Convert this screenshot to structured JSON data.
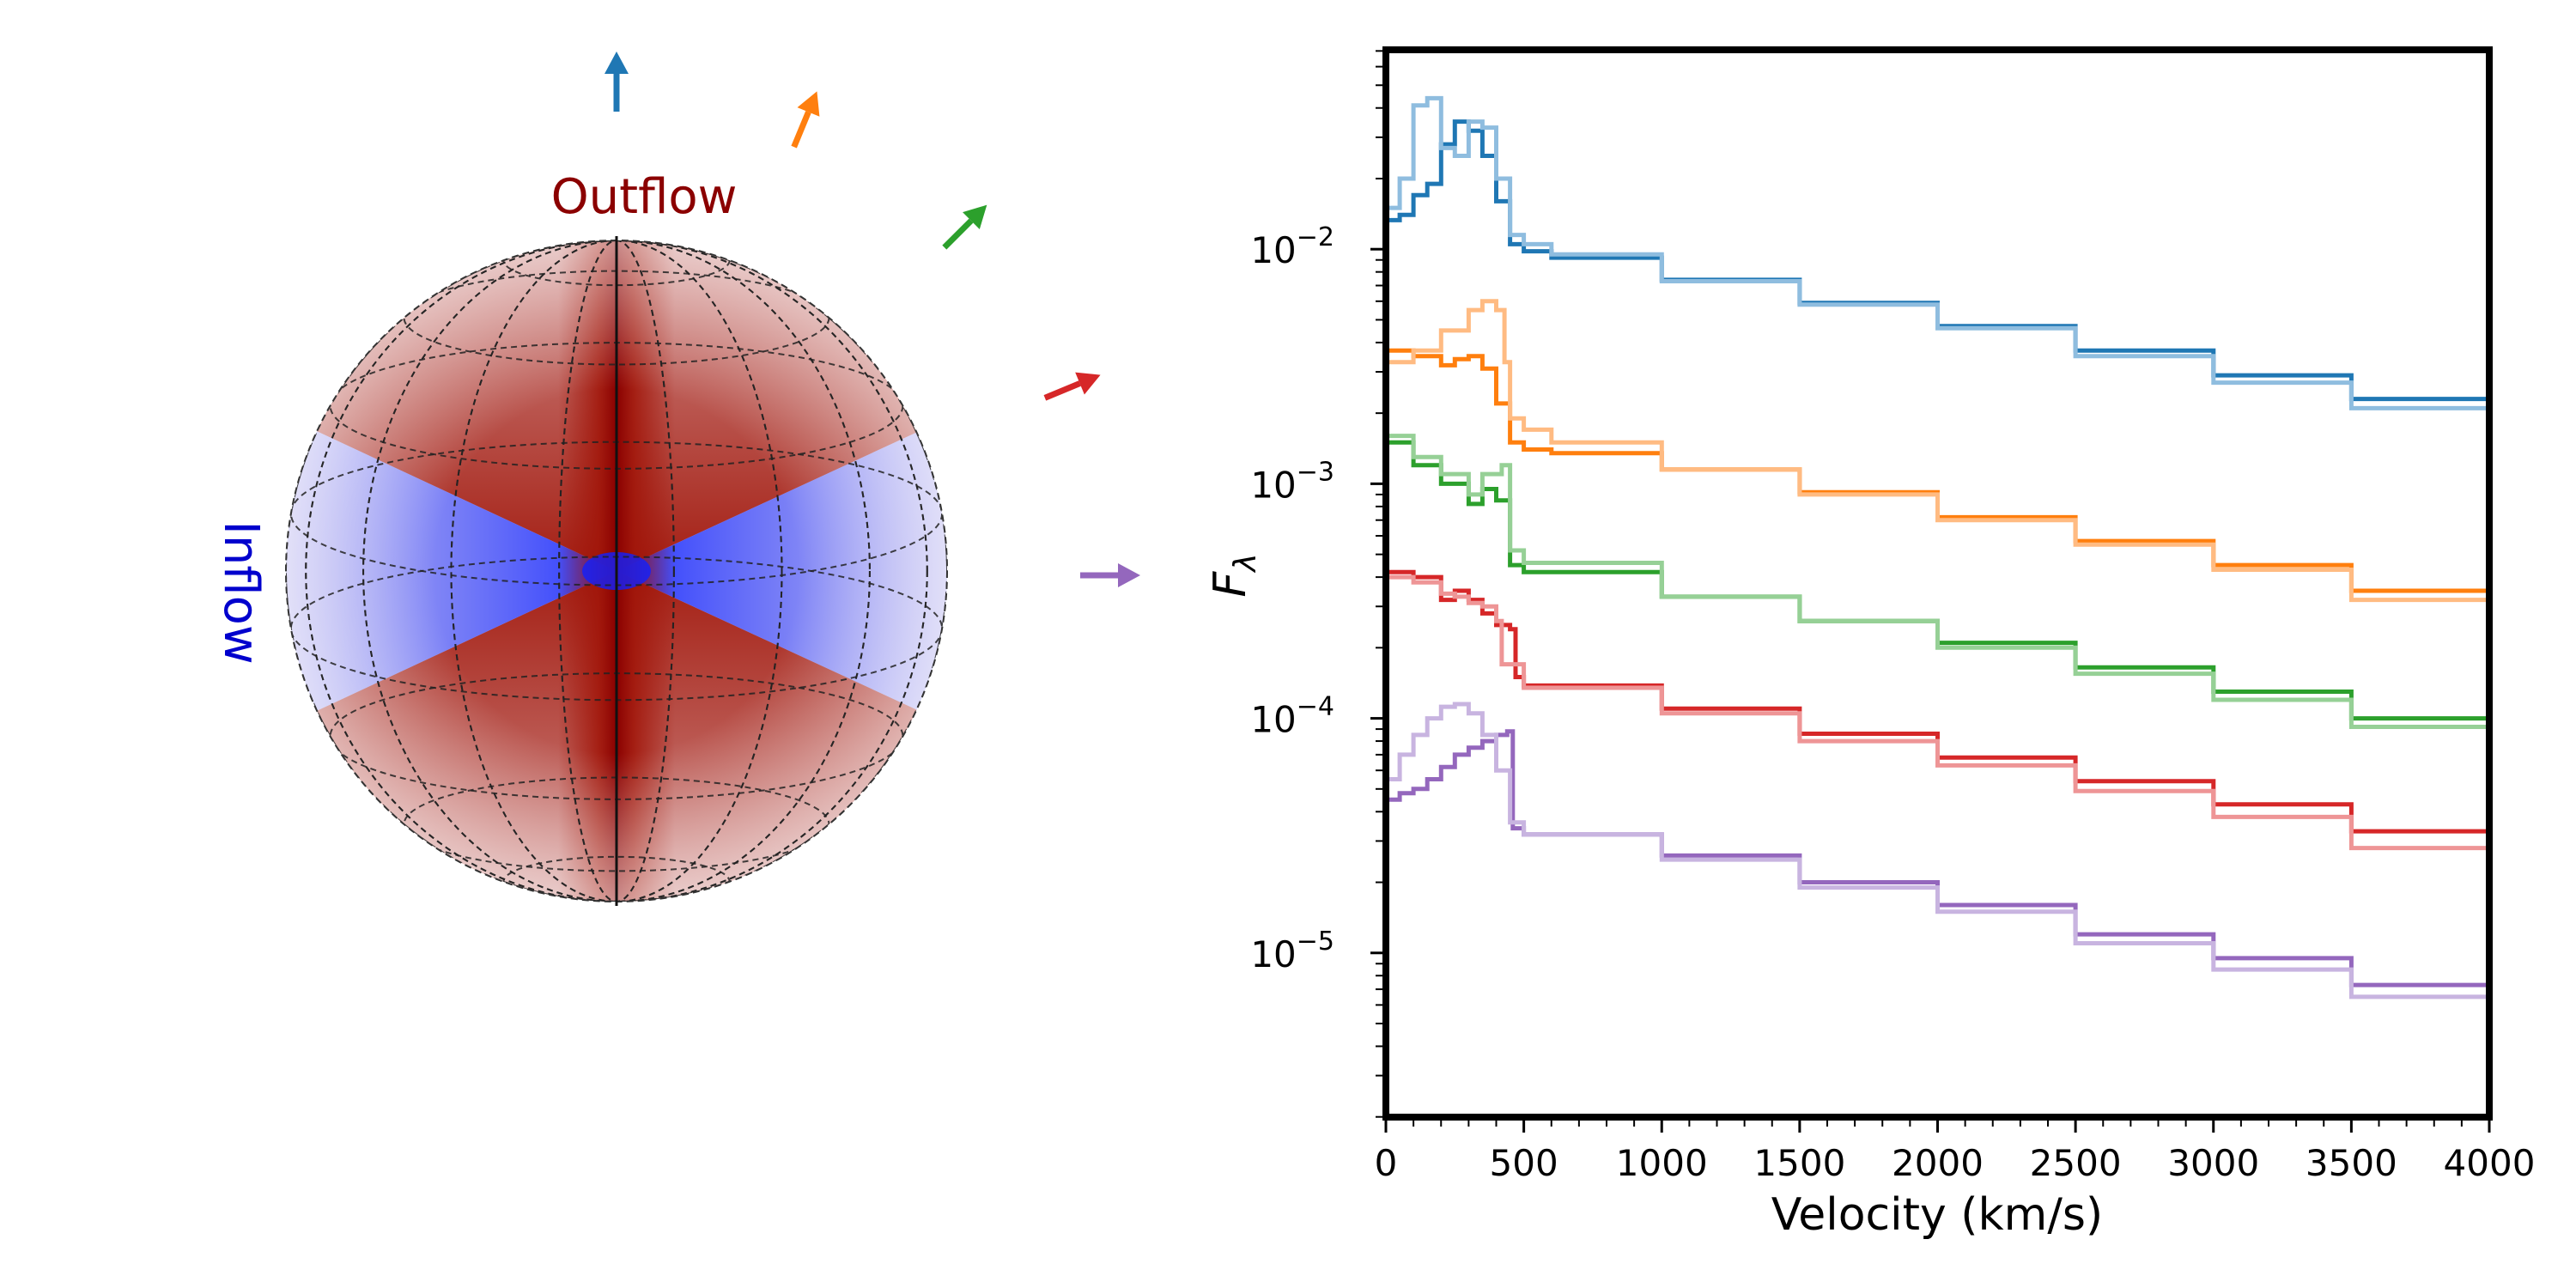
{
  "labels": {
    "outflow": "Outflow",
    "inflow": "Inflow"
  },
  "colors": {
    "outflow": "#8b0000",
    "inflow": "#0000cd",
    "sphere_outflow": "#a01408",
    "sphere_inflow": "#3a4dff"
  },
  "arrows": [
    {
      "color": "#1f77b4",
      "angle_from_axis_deg": 0
    },
    {
      "color": "#ff7f0e",
      "angle_from_axis_deg": 22.5
    },
    {
      "color": "#2ca02c",
      "angle_from_axis_deg": 45
    },
    {
      "color": "#d62728",
      "angle_from_axis_deg": 67.5
    },
    {
      "color": "#9467bd",
      "angle_from_axis_deg": 90
    }
  ],
  "chart_data": {
    "type": "line",
    "title": "",
    "xlabel": "Velocity (km/s)",
    "ylabel": "F_λ",
    "ylabel_base": "F",
    "ylabel_sub": "λ",
    "xlim": [
      0,
      4000
    ],
    "ylim_log10": [
      -5.7,
      -1.15
    ],
    "yscale": "log",
    "grid": false,
    "legend": "none",
    "x_ticks": [
      0,
      500,
      1000,
      1500,
      2000,
      2500,
      3000,
      3500,
      4000
    ],
    "x_tick_labels": [
      "0",
      "500",
      "1000",
      "1500",
      "2000",
      "2500",
      "3000",
      "3500",
      "4000"
    ],
    "y_ticks": [
      {
        "value": 1e-05,
        "base": "10",
        "exp": "−5"
      },
      {
        "value": 0.0001,
        "base": "10",
        "exp": "−4"
      },
      {
        "value": 0.001,
        "base": "10",
        "exp": "−3"
      },
      {
        "value": 0.01,
        "base": "10",
        "exp": "−2"
      }
    ],
    "series": [
      {
        "color": "#1f77b4",
        "width": 5,
        "opacity": 1.0,
        "points": [
          [
            0,
            0.0133
          ],
          [
            50,
            0.014
          ],
          [
            100,
            0.017
          ],
          [
            150,
            0.019
          ],
          [
            200,
            0.028
          ],
          [
            250,
            0.035
          ],
          [
            300,
            0.032
          ],
          [
            350,
            0.025
          ],
          [
            400,
            0.016
          ],
          [
            450,
            0.0105
          ],
          [
            500,
            0.0098
          ],
          [
            600,
            0.0092
          ],
          [
            1000,
            0.0074
          ],
          [
            1500,
            0.0059
          ],
          [
            2000,
            0.0047
          ],
          [
            2500,
            0.0037
          ],
          [
            3000,
            0.0029
          ],
          [
            3500,
            0.0023
          ],
          [
            4000,
            0.0018
          ]
        ]
      },
      {
        "color": "#8fbddf",
        "width": 5,
        "opacity": 1.0,
        "points": [
          [
            0,
            0.015
          ],
          [
            50,
            0.02
          ],
          [
            100,
            0.041
          ],
          [
            150,
            0.044
          ],
          [
            200,
            0.027
          ],
          [
            250,
            0.025
          ],
          [
            300,
            0.035
          ],
          [
            350,
            0.033
          ],
          [
            400,
            0.02
          ],
          [
            450,
            0.0115
          ],
          [
            500,
            0.0105
          ],
          [
            600,
            0.0095
          ],
          [
            1000,
            0.0073
          ],
          [
            1500,
            0.0058
          ],
          [
            2000,
            0.0046
          ],
          [
            2500,
            0.0035
          ],
          [
            3000,
            0.0027
          ],
          [
            3500,
            0.0021
          ],
          [
            4000,
            0.00155
          ]
        ]
      },
      {
        "color": "#ff7f0e",
        "width": 5,
        "opacity": 1.0,
        "points": [
          [
            0,
            0.0037
          ],
          [
            100,
            0.0035
          ],
          [
            200,
            0.0032
          ],
          [
            250,
            0.0034
          ],
          [
            300,
            0.0035
          ],
          [
            350,
            0.0031
          ],
          [
            400,
            0.0022
          ],
          [
            450,
            0.0015
          ],
          [
            500,
            0.0014
          ],
          [
            600,
            0.00135
          ],
          [
            1000,
            0.00115
          ],
          [
            1500,
            0.00092
          ],
          [
            2000,
            0.00072
          ],
          [
            2500,
            0.00057
          ],
          [
            3000,
            0.00045
          ],
          [
            3500,
            0.00035
          ],
          [
            4000,
            0.00026
          ]
        ]
      },
      {
        "color": "#ffbb82",
        "width": 5,
        "opacity": 1.0,
        "points": [
          [
            0,
            0.0033
          ],
          [
            100,
            0.0037
          ],
          [
            200,
            0.0045
          ],
          [
            300,
            0.0055
          ],
          [
            350,
            0.006
          ],
          [
            400,
            0.0055
          ],
          [
            430,
            0.0033
          ],
          [
            450,
            0.0019
          ],
          [
            500,
            0.0017
          ],
          [
            600,
            0.0015
          ],
          [
            1000,
            0.00115
          ],
          [
            1500,
            0.0009
          ],
          [
            2000,
            0.0007
          ],
          [
            2500,
            0.00055
          ],
          [
            3000,
            0.00043
          ],
          [
            3500,
            0.00032
          ],
          [
            4000,
            0.00024
          ]
        ]
      },
      {
        "color": "#2ca02c",
        "width": 5,
        "opacity": 1.0,
        "points": [
          [
            0,
            0.0015
          ],
          [
            100,
            0.0012
          ],
          [
            200,
            0.001
          ],
          [
            300,
            0.00082
          ],
          [
            350,
            0.00095
          ],
          [
            400,
            0.00085
          ],
          [
            450,
            0.00045
          ],
          [
            500,
            0.00042
          ],
          [
            1000,
            0.00033
          ],
          [
            1500,
            0.00026
          ],
          [
            2000,
            0.00021
          ],
          [
            2500,
            0.000165
          ],
          [
            3000,
            0.00013
          ],
          [
            3500,
            0.0001
          ],
          [
            4000,
            7.7e-05
          ]
        ]
      },
      {
        "color": "#96d096",
        "width": 5,
        "opacity": 1.0,
        "points": [
          [
            0,
            0.0016
          ],
          [
            100,
            0.0013
          ],
          [
            200,
            0.0011
          ],
          [
            300,
            0.0009
          ],
          [
            350,
            0.0011
          ],
          [
            420,
            0.0012
          ],
          [
            450,
            0.00052
          ],
          [
            500,
            0.00046
          ],
          [
            1000,
            0.00033
          ],
          [
            1500,
            0.00026
          ],
          [
            2000,
            0.0002
          ],
          [
            2500,
            0.000155
          ],
          [
            3000,
            0.00012
          ],
          [
            3500,
            9.2e-05
          ],
          [
            4000,
            6.5e-05
          ]
        ]
      },
      {
        "color": "#d62728",
        "width": 5,
        "opacity": 1.0,
        "points": [
          [
            0,
            0.00042
          ],
          [
            100,
            0.0004
          ],
          [
            200,
            0.00032
          ],
          [
            250,
            0.00035
          ],
          [
            300,
            0.00032
          ],
          [
            350,
            0.00028
          ],
          [
            400,
            0.00025
          ],
          [
            450,
            0.00024
          ],
          [
            470,
            0.00015
          ],
          [
            500,
            0.000138
          ],
          [
            1000,
            0.00011
          ],
          [
            1500,
            8.6e-05
          ],
          [
            2000,
            6.8e-05
          ],
          [
            2500,
            5.4e-05
          ],
          [
            3000,
            4.3e-05
          ],
          [
            3500,
            3.3e-05
          ],
          [
            4000,
            2.4e-05
          ]
        ]
      },
      {
        "color": "#ee9596",
        "width": 5,
        "opacity": 1.0,
        "points": [
          [
            0,
            0.0004
          ],
          [
            100,
            0.00038
          ],
          [
            200,
            0.00034
          ],
          [
            250,
            0.00033
          ],
          [
            300,
            0.00031
          ],
          [
            350,
            0.0003
          ],
          [
            400,
            0.00026
          ],
          [
            420,
            0.00017
          ],
          [
            500,
            0.000135
          ],
          [
            1000,
            0.000105
          ],
          [
            1500,
            8e-05
          ],
          [
            2000,
            6.3e-05
          ],
          [
            2500,
            4.9e-05
          ],
          [
            3000,
            3.8e-05
          ],
          [
            3500,
            2.8e-05
          ],
          [
            4000,
            2e-05
          ]
        ]
      },
      {
        "color": "#9467bd",
        "width": 5,
        "opacity": 1.0,
        "points": [
          [
            0,
            4.5e-05
          ],
          [
            50,
            4.8e-05
          ],
          [
            100,
            5e-05
          ],
          [
            150,
            5.5e-05
          ],
          [
            200,
            6.2e-05
          ],
          [
            250,
            7e-05
          ],
          [
            300,
            7.5e-05
          ],
          [
            350,
            8e-05
          ],
          [
            400,
            8.5e-05
          ],
          [
            440,
            8.8e-05
          ],
          [
            460,
            3.4e-05
          ],
          [
            500,
            3.2e-05
          ],
          [
            1000,
            2.6e-05
          ],
          [
            1500,
            2e-05
          ],
          [
            2000,
            1.6e-05
          ],
          [
            2500,
            1.2e-05
          ],
          [
            3000,
            9.5e-06
          ],
          [
            3500,
            7.3e-06
          ],
          [
            4000,
            5.4e-06
          ]
        ]
      },
      {
        "color": "#c8b4e0",
        "width": 5,
        "opacity": 1.0,
        "points": [
          [
            0,
            5.5e-05
          ],
          [
            50,
            7e-05
          ],
          [
            100,
            8.5e-05
          ],
          [
            150,
            0.0001
          ],
          [
            200,
            0.000112
          ],
          [
            250,
            0.000115
          ],
          [
            300,
            0.000105
          ],
          [
            350,
            8.5e-05
          ],
          [
            400,
            6e-05
          ],
          [
            450,
            3.6e-05
          ],
          [
            500,
            3.2e-05
          ],
          [
            1000,
            2.5e-05
          ],
          [
            1500,
            1.9e-05
          ],
          [
            2000,
            1.5e-05
          ],
          [
            2500,
            1.1e-05
          ],
          [
            3000,
            8.5e-06
          ],
          [
            3500,
            6.5e-06
          ],
          [
            4000,
            4.5e-06
          ]
        ]
      }
    ]
  }
}
